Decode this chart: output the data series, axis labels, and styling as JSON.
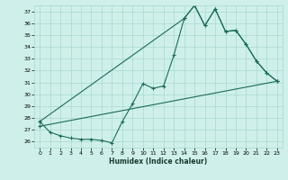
{
  "xlabel": "Humidex (Indice chaleur)",
  "bg_color": "#cff0ea",
  "grid_color": "#a8d8d0",
  "line_color": "#1a6b5a",
  "xlim": [
    -0.5,
    23.5
  ],
  "ylim": [
    25.5,
    37.5
  ],
  "xticks": [
    0,
    1,
    2,
    3,
    4,
    5,
    6,
    7,
    8,
    9,
    10,
    11,
    12,
    13,
    14,
    15,
    16,
    17,
    18,
    19,
    20,
    21,
    22,
    23
  ],
  "yticks": [
    26,
    27,
    28,
    29,
    30,
    31,
    32,
    33,
    34,
    35,
    36,
    37
  ],
  "series1_x": [
    0,
    1,
    2,
    3,
    4,
    5,
    6,
    7,
    8,
    9,
    10,
    11,
    12,
    13,
    14,
    15,
    16,
    17,
    18,
    19,
    20,
    21,
    22,
    23
  ],
  "series1_y": [
    27.7,
    26.8,
    26.5,
    26.3,
    26.2,
    26.2,
    26.1,
    25.9,
    27.7,
    29.2,
    30.9,
    30.5,
    30.7,
    33.3,
    36.4,
    37.5,
    35.8,
    37.2,
    35.3,
    35.4,
    34.2,
    32.8,
    31.8,
    31.1
  ],
  "series2_x": [
    0,
    14,
    15,
    16,
    17,
    18,
    19,
    20,
    21,
    22,
    23
  ],
  "series2_y": [
    27.7,
    36.4,
    37.5,
    35.8,
    37.2,
    35.3,
    35.4,
    34.2,
    32.8,
    31.8,
    31.1
  ],
  "series3_x": [
    0,
    23
  ],
  "series3_y": [
    27.3,
    31.1
  ]
}
